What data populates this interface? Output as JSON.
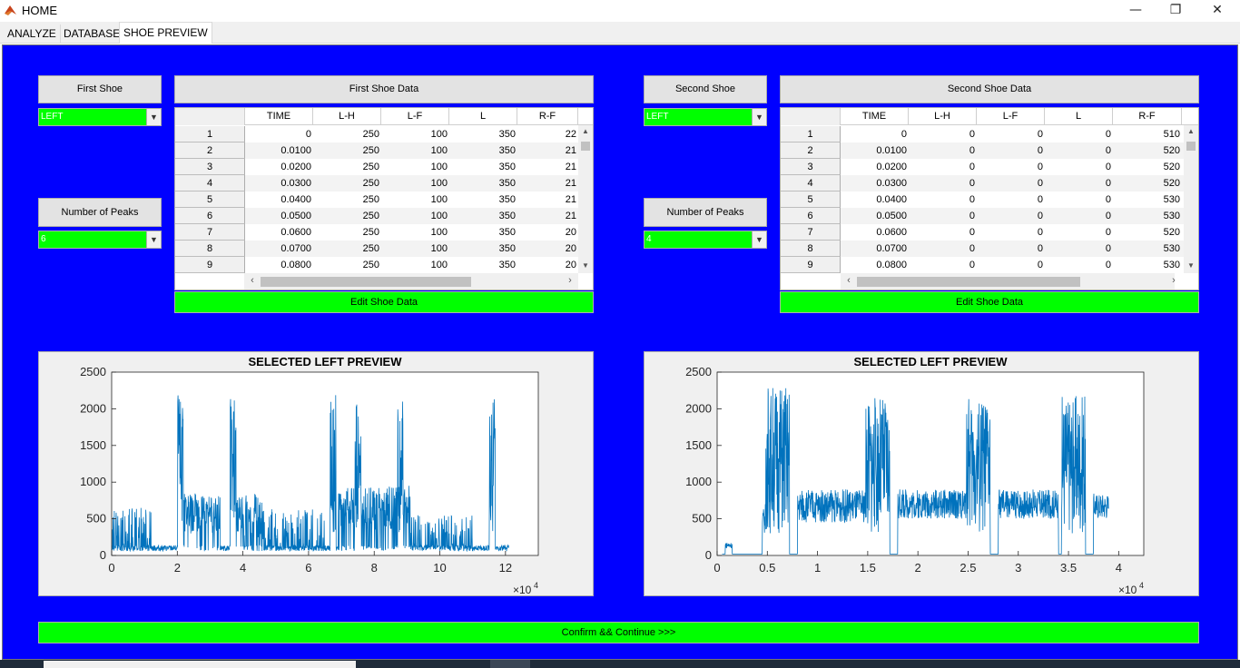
{
  "window": {
    "title": "HOME",
    "minimize": "—",
    "restore": "❐",
    "close": "✕"
  },
  "tabs": [
    {
      "label": "ANALYZE"
    },
    {
      "label": "DATABASE"
    },
    {
      "label": "SHOE PREVIEW"
    }
  ],
  "left": {
    "shoe_label": "First Shoe",
    "shoe_select": "LEFT",
    "peaks_label": "Number of Peaks",
    "peaks_select": "6",
    "table_title": "First Shoe Data",
    "columns": [
      "TIME",
      "L-H",
      "L-F",
      "L",
      "R-F"
    ],
    "row_numbers": [
      "1",
      "2",
      "3",
      "4",
      "5",
      "6",
      "7",
      "8",
      "9"
    ],
    "rows": [
      [
        "0",
        "250",
        "100",
        "350",
        "22"
      ],
      [
        "0.0100",
        "250",
        "100",
        "350",
        "21"
      ],
      [
        "0.0200",
        "250",
        "100",
        "350",
        "21"
      ],
      [
        "0.0300",
        "250",
        "100",
        "350",
        "21"
      ],
      [
        "0.0400",
        "250",
        "100",
        "350",
        "21"
      ],
      [
        "0.0500",
        "250",
        "100",
        "350",
        "21"
      ],
      [
        "0.0600",
        "250",
        "100",
        "350",
        "20"
      ],
      [
        "0.0700",
        "250",
        "100",
        "350",
        "20"
      ],
      [
        "0.0800",
        "250",
        "100",
        "350",
        "20"
      ]
    ],
    "edit_label": "Edit Shoe Data"
  },
  "right": {
    "shoe_label": "Second Shoe",
    "shoe_select": "LEFT",
    "peaks_label": "Number of Peaks",
    "peaks_select": "4",
    "table_title": "Second Shoe Data",
    "columns": [
      "TIME",
      "L-H",
      "L-F",
      "L",
      "R-F"
    ],
    "row_numbers": [
      "1",
      "2",
      "3",
      "4",
      "5",
      "6",
      "7",
      "8",
      "9"
    ],
    "rows": [
      [
        "0",
        "0",
        "0",
        "0",
        "510"
      ],
      [
        "0.0100",
        "0",
        "0",
        "0",
        "520"
      ],
      [
        "0.0200",
        "0",
        "0",
        "0",
        "520"
      ],
      [
        "0.0300",
        "0",
        "0",
        "0",
        "520"
      ],
      [
        "0.0400",
        "0",
        "0",
        "0",
        "530"
      ],
      [
        "0.0500",
        "0",
        "0",
        "0",
        "530"
      ],
      [
        "0.0600",
        "0",
        "0",
        "0",
        "520"
      ],
      [
        "0.0700",
        "0",
        "0",
        "0",
        "530"
      ],
      [
        "0.0800",
        "0",
        "0",
        "0",
        "530"
      ]
    ],
    "edit_label": "Edit Shoe Data"
  },
  "confirm_label": "Confirm && Continue >>>",
  "colors": {
    "panel_bg": "#0000ff",
    "accent_green": "#00ff00",
    "plot_line": "#0072bd"
  },
  "chart_data": [
    {
      "type": "line",
      "title": "SELECTED LEFT PREVIEW",
      "xlabel": "",
      "ylabel": "",
      "xlim": [
        0,
        130000
      ],
      "ylim": [
        0,
        2500
      ],
      "xtick_labels": [
        "0",
        "2",
        "4",
        "6",
        "8",
        "10",
        "12"
      ],
      "ytick_labels": [
        "0",
        "500",
        "1000",
        "1500",
        "2000",
        "2500"
      ],
      "x_exponent": "×10^4",
      "grid": false,
      "peaks": [
        {
          "x": 21000,
          "y": 2200
        },
        {
          "x": 37000,
          "y": 2150
        },
        {
          "x": 67500,
          "y": 2200
        },
        {
          "x": 75000,
          "y": 2100
        },
        {
          "x": 88000,
          "y": 2150
        },
        {
          "x": 116000,
          "y": 2200
        }
      ]
    },
    {
      "type": "line",
      "title": "SELECTED LEFT PREVIEW",
      "xlabel": "",
      "ylabel": "",
      "xlim": [
        0,
        42500
      ],
      "ylim": [
        0,
        2500
      ],
      "xtick_labels": [
        "0",
        "0.5",
        "1",
        "1.5",
        "2",
        "2.5",
        "3",
        "3.5",
        "4"
      ],
      "ytick_labels": [
        "0",
        "500",
        "1000",
        "1500",
        "2000",
        "2500"
      ],
      "x_exponent": "×10^4",
      "grid": false,
      "peaks": [
        {
          "x": 6000,
          "y": 2350
        },
        {
          "x": 16000,
          "y": 2150
        },
        {
          "x": 26000,
          "y": 2150
        },
        {
          "x": 35500,
          "y": 2200
        }
      ]
    }
  ]
}
